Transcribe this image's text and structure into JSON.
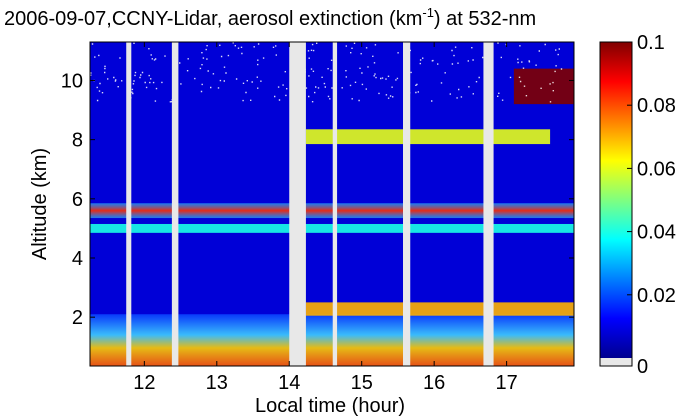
{
  "chart_data": {
    "type": "heatmap",
    "title": {
      "prefix": "2006-09-07,CCNY-Lidar, aerosol extinction (km",
      "superscript": "-1",
      "suffix": ") at 532-nm"
    },
    "xlabel": "Local time (hour)",
    "ylabel": "Altitude (km)",
    "xlim": [
      11.25,
      17.93
    ],
    "ylim": [
      0.35,
      11.3
    ],
    "x_ticks": [
      12,
      13,
      14,
      15,
      16,
      17
    ],
    "y_ticks": [
      2,
      4,
      6,
      8,
      10
    ],
    "colorbar": {
      "min": 0,
      "max": 0.1,
      "ticks": [
        {
          "value": 0,
          "label": "0"
        },
        {
          "value": 0.02,
          "label": "0.02"
        },
        {
          "value": 0.04,
          "label": "0.04"
        },
        {
          "value": 0.06,
          "label": "0.06"
        },
        {
          "value": 0.08,
          "label": "0.08"
        },
        {
          "value": 0.1,
          "label": "0.1"
        }
      ],
      "colormap": "jet",
      "no_data_color": "#e8e8e8"
    },
    "data_gaps": [
      {
        "start": 11.75,
        "end": 11.82
      },
      {
        "start": 12.38,
        "end": 12.47
      },
      {
        "start": 14.0,
        "end": 14.23
      },
      {
        "start": 14.6,
        "end": 14.66
      },
      {
        "start": 15.57,
        "end": 15.67
      },
      {
        "start": 16.68,
        "end": 16.82
      }
    ],
    "aerosol_layers": [
      {
        "name": "boundary-layer",
        "t_start": 11.25,
        "t_end": 17.93,
        "alt_bottom": 0.35,
        "alt_top": 2.1,
        "extinction": 0.035
      },
      {
        "name": "layer-2.3km",
        "t_start": 14.23,
        "t_end": 17.93,
        "alt_bottom": 2.05,
        "alt_top": 2.5,
        "extinction": 0.07
      },
      {
        "name": "layer-5.0km",
        "t_start": 11.25,
        "t_end": 17.93,
        "alt_bottom": 4.85,
        "alt_top": 5.15,
        "extinction": 0.04
      },
      {
        "name": "layer-5.6km",
        "t_start": 11.25,
        "t_end": 17.93,
        "alt_bottom": 5.35,
        "alt_top": 5.85,
        "extinction": 0.085
      },
      {
        "name": "layer-8.1km",
        "t_start": 14.23,
        "t_end": 17.6,
        "alt_bottom": 7.85,
        "alt_top": 8.35,
        "extinction": 0.06
      },
      {
        "name": "cloud-10km",
        "t_start": 17.1,
        "t_end": 17.93,
        "alt_bottom": 9.2,
        "alt_top": 10.4,
        "extinction": 0.1
      }
    ],
    "background_extinction": 0.008
  }
}
